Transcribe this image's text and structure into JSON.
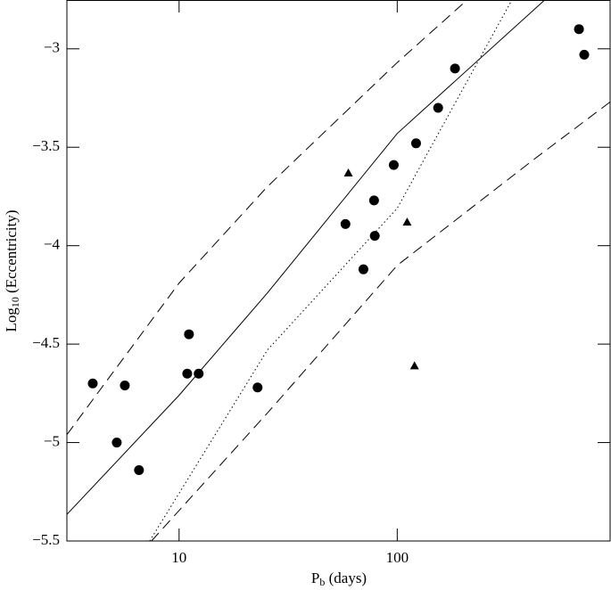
{
  "chart_data": {
    "type": "scatter",
    "xlabel": [
      "P",
      "b",
      " (days)"
    ],
    "ylabel": [
      "Log",
      "10",
      " (Eccentricity)"
    ],
    "xscale": "log",
    "xlim": [
      3.06,
      946
    ],
    "ylim": [
      -5.5,
      -2.752
    ],
    "xticks": [
      10,
      100
    ],
    "yticks": [
      {
        "value": -3,
        "label": "−3"
      },
      {
        "value": -3.5,
        "label": "−3.5"
      },
      {
        "value": -4,
        "label": "−4"
      },
      {
        "value": -4.5,
        "label": "−4.5"
      },
      {
        "value": -5,
        "label": "−5"
      },
      {
        "value": -5.5,
        "label": "−5.5"
      }
    ],
    "series": [
      {
        "marker": "circle",
        "color": "#000",
        "x": [
          4.02,
          5.64,
          5.18,
          6.55,
          11.1,
          10.9,
          12.3,
          22.9,
          57.9,
          70.0,
          78.3,
          78.9,
          96.4,
          122,
          154,
          184,
          681,
          720
        ],
        "y": [
          -4.7,
          -4.71,
          -5.0,
          -5.14,
          -4.45,
          -4.65,
          -4.65,
          -4.72,
          -3.89,
          -4.12,
          -3.77,
          -3.95,
          -3.59,
          -3.48,
          -3.3,
          -3.1,
          -2.9,
          -3.03
        ]
      },
      {
        "marker": "triangle",
        "color": "#000",
        "x": [
          59.7,
          111,
          120
        ],
        "y": [
          -3.63,
          -3.88,
          -4.61
        ]
      },
      {
        "line": "solid",
        "color": "#000",
        "x": [
          3.06,
          10,
          25.4,
          100,
          476
        ],
        "y": [
          -5.365,
          -4.76,
          -4.24,
          -3.43,
          -2.75
        ]
      },
      {
        "line": "dashed",
        "color": "#000",
        "x": [
          3.06,
          10,
          25.4,
          100,
          210
        ],
        "y": [
          -4.96,
          -4.19,
          -3.7,
          -3.07,
          -2.75
        ]
      },
      {
        "line": "dashed",
        "color": "#000",
        "x": [
          7.47,
          25.4,
          100,
          425,
          946
        ],
        "y": [
          -5.5,
          -4.85,
          -4.1,
          -3.56,
          -3.27
        ]
      },
      {
        "line": "dotted",
        "color": "#000",
        "x": [
          7.33,
          25.4,
          100,
          336
        ],
        "y": [
          -5.5,
          -4.53,
          -3.81,
          -2.75
        ]
      }
    ]
  }
}
